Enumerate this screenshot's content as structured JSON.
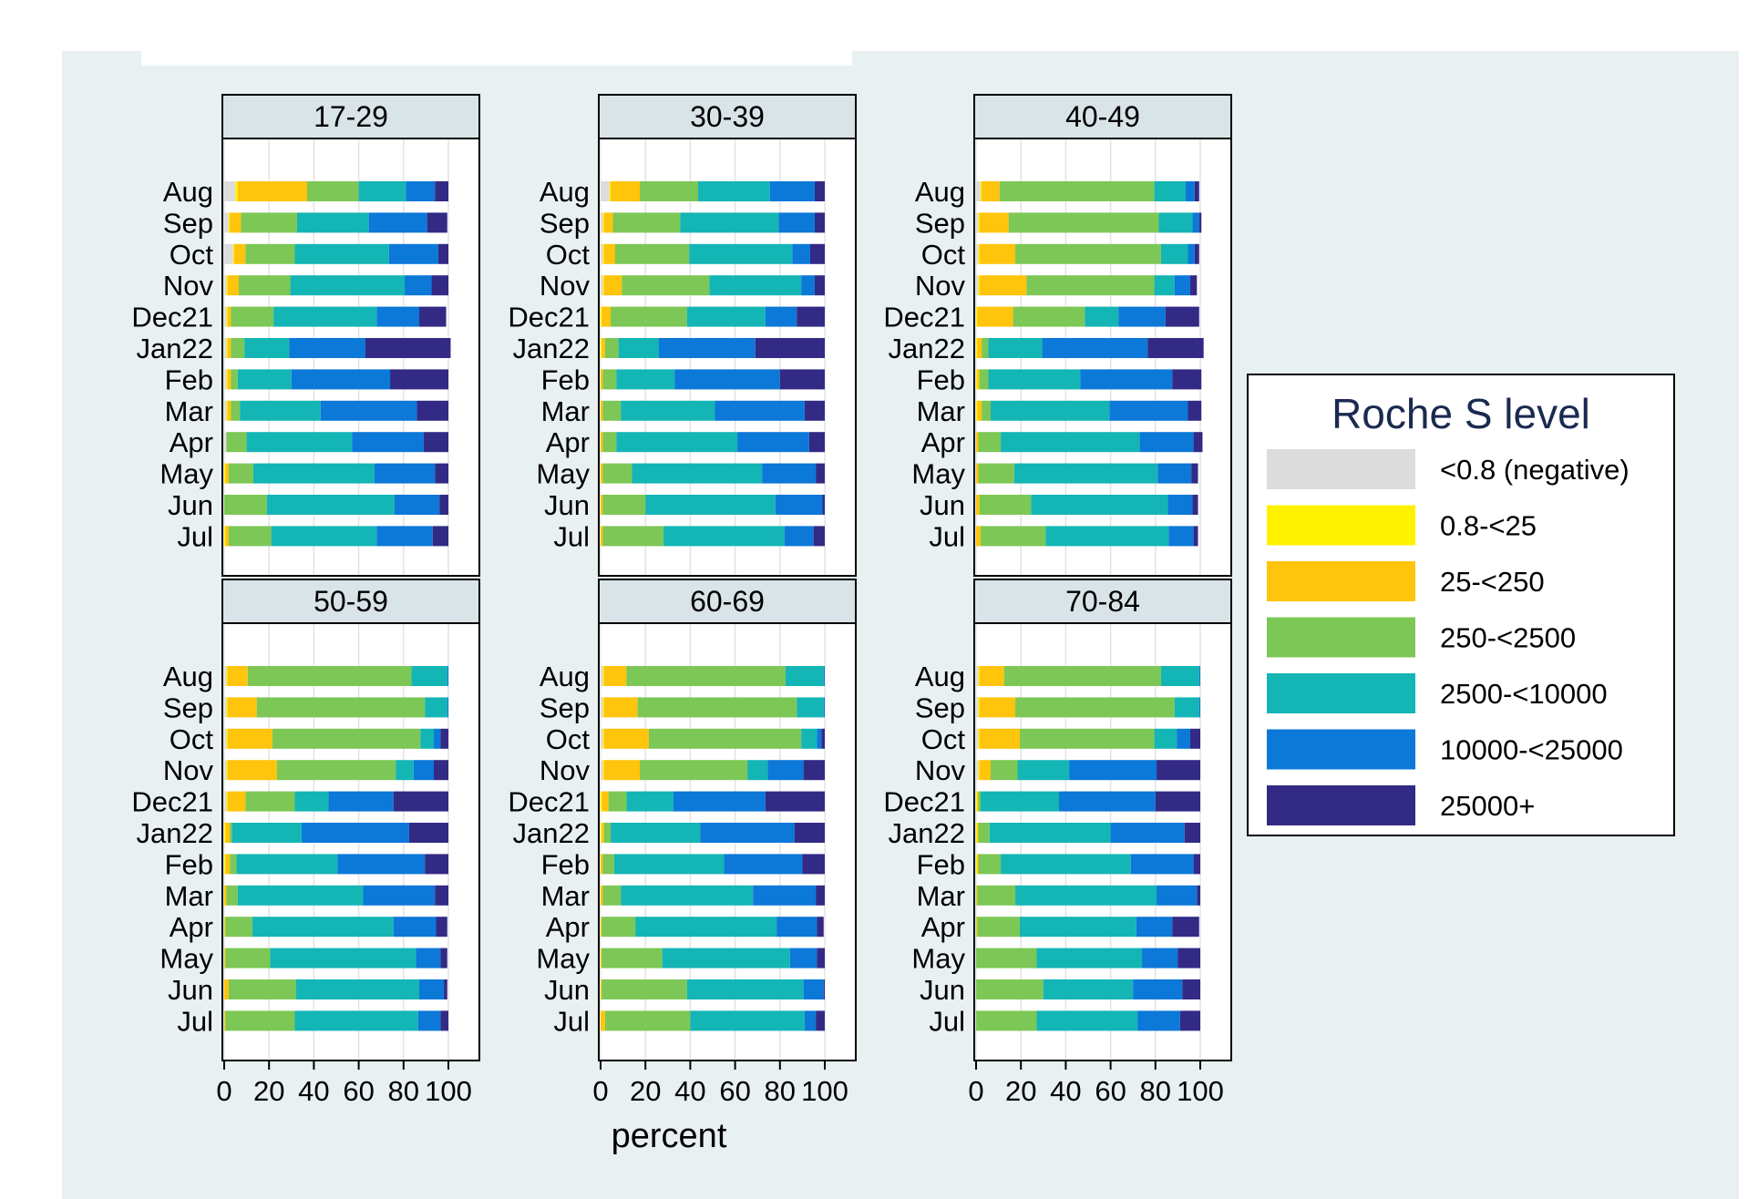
{
  "chart_data": {
    "type": "bar",
    "orientation": "horizontal",
    "stacked": true,
    "xlabel": "percent",
    "xlim": [
      0,
      100
    ],
    "xticks": [
      0,
      20,
      40,
      60,
      80,
      100
    ],
    "grid": true,
    "legend_position": "right",
    "categories": [
      "Aug",
      "Sep",
      "Oct",
      "Nov",
      "Dec21",
      "Jan22",
      "Feb",
      "Mar",
      "Apr",
      "May",
      "Jun",
      "Jul"
    ],
    "legend": {
      "title": "Roche S level",
      "items": [
        {
          "label": "<0.8 (negative)",
          "color": "#dcdcdc"
        },
        {
          "label": "0.8-<25",
          "color": "#fff200"
        },
        {
          "label": "25-<250",
          "color": "#ffc40c"
        },
        {
          "label": "250-<2500",
          "color": "#7dc756"
        },
        {
          "label": "2500-<10000",
          "color": "#14b5b5"
        },
        {
          "label": "10000-<25000",
          "color": "#0c78d8"
        },
        {
          "label": "25000+",
          "color": "#332a85"
        }
      ]
    },
    "panels": [
      {
        "title": "17-29",
        "series": [
          {
            "name": "<0.8 (negative)",
            "values": [
              5,
              2,
              4,
              1,
              1,
              1,
              1,
              1,
              1,
              0,
              0,
              0
            ]
          },
          {
            "name": "0.8-<25",
            "values": [
              1,
              0.5,
              0.5,
              0.5,
              0.5,
              0.5,
              0.5,
              0.5,
              0,
              0.5,
              0,
              0.5
            ]
          },
          {
            "name": "25-<250",
            "values": [
              31,
              5,
              5,
              5,
              1.5,
              1.5,
              1.5,
              1.5,
              0,
              1.5,
              0,
              1.5
            ]
          },
          {
            "name": "250-<2500",
            "values": [
              23,
              25,
              22,
              23,
              19,
              6,
              3,
              4,
              9,
              11,
              19,
              19
            ]
          },
          {
            "name": "2500-<10000",
            "values": [
              21,
              32,
              42,
              51,
              46,
              20,
              24,
              36,
              47,
              54,
              57,
              47
            ]
          },
          {
            "name": "10000-<25000",
            "values": [
              13,
              26,
              22,
              12,
              19,
              34,
              44,
              43,
              32,
              27,
              20,
              25
            ]
          },
          {
            "name": "25000+",
            "values": [
              6,
              9,
              4.5,
              7.5,
              12,
              38,
              26,
              14,
              11,
              6,
              4,
              7
            ]
          }
        ]
      },
      {
        "title": "30-39",
        "series": [
          {
            "name": "<0.8 (negative)",
            "values": [
              4,
              1,
              1,
              1,
              0,
              0,
              0,
              0,
              0,
              0,
              0,
              0
            ]
          },
          {
            "name": "0.8-<25",
            "values": [
              0.5,
              0.5,
              0.5,
              0.5,
              0.5,
              0.5,
              0,
              0,
              0,
              0,
              0,
              0
            ]
          },
          {
            "name": "25-<250",
            "values": [
              13,
              4,
              5,
              8,
              4,
              1.5,
              1,
              1,
              1,
              1,
              1,
              1
            ]
          },
          {
            "name": "250-<2500",
            "values": [
              26,
              30,
              33,
              39,
              34,
              6,
              6,
              8,
              6,
              13,
              19,
              27
            ]
          },
          {
            "name": "2500-<10000",
            "values": [
              32,
              44,
              46,
              41,
              35,
              18,
              26,
              42,
              54,
              58,
              58,
              54
            ]
          },
          {
            "name": "10000-<25000",
            "values": [
              20,
              16,
              8,
              6,
              14,
              43,
              47,
              40,
              32,
              24,
              21,
              13
            ]
          },
          {
            "name": "25000+",
            "values": [
              4.5,
              4.5,
              6.5,
              4.5,
              12.5,
              31,
              20,
              9,
              7,
              4,
              1,
              5
            ]
          }
        ]
      },
      {
        "title": "40-49",
        "series": [
          {
            "name": "<0.8 (negative)",
            "values": [
              2,
              1,
              1,
              1,
              0,
              0,
              0,
              0,
              0,
              0,
              0,
              0
            ]
          },
          {
            "name": "0.8-<25",
            "values": [
              0.5,
              0.5,
              0.5,
              0.5,
              0.5,
              0.5,
              0.5,
              0.5,
              0,
              0,
              0,
              0
            ]
          },
          {
            "name": "25-<250",
            "values": [
              8,
              13,
              16,
              21,
              16,
              2,
              1,
              2,
              1,
              1,
              1.5,
              2
            ]
          },
          {
            "name": "250-<2500",
            "values": [
              69,
              67,
              65,
              57,
              32,
              3,
              4,
              4,
              10,
              16,
              23,
              29
            ]
          },
          {
            "name": "2500-<10000",
            "values": [
              14,
              15,
              12,
              9,
              15,
              24,
              41,
              53,
              62,
              64,
              61,
              55
            ]
          },
          {
            "name": "10000-<25000",
            "values": [
              4,
              3,
              3,
              7,
              21,
              47,
              41,
              35,
              24,
              15,
              11,
              11
            ]
          },
          {
            "name": "25000+",
            "values": [
              2,
              1,
              2,
              3,
              15,
              25,
              13,
              6,
              4,
              3,
              2.5,
              2
            ]
          }
        ]
      },
      {
        "title": "50-59",
        "series": [
          {
            "name": "<0.8 (negative)",
            "values": [
              1,
              1,
              1,
              1,
              1,
              0,
              0,
              0,
              0,
              0,
              0,
              0
            ]
          },
          {
            "name": "0.8-<25",
            "values": [
              0.5,
              0.5,
              0.5,
              0.5,
              0.5,
              0.5,
              0.5,
              0,
              0,
              0,
              0,
              0
            ]
          },
          {
            "name": "25-<250",
            "values": [
              9,
              13,
              20,
              22,
              8,
              2,
              2,
              1,
              0.5,
              0.5,
              2,
              0.5
            ]
          },
          {
            "name": "250-<2500",
            "values": [
              73,
              75,
              66,
              53,
              22,
              1,
              3,
              5,
              12,
              20,
              30,
              31
            ]
          },
          {
            "name": "2500-<10000",
            "values": [
              16,
              10,
              6,
              8,
              15,
              31,
              45,
              56,
              63,
              65,
              55,
              55
            ]
          },
          {
            "name": "10000-<25000",
            "values": [
              0.5,
              0.5,
              3,
              9,
              29,
              48,
              39,
              32,
              19,
              11,
              11,
              10
            ]
          },
          {
            "name": "25000+",
            "values": [
              0,
              0,
              3.5,
              6.5,
              24.5,
              17.5,
              10.5,
              6,
              5,
              3,
              1.5,
              3.5
            ]
          }
        ]
      },
      {
        "title": "60-69",
        "series": [
          {
            "name": "<0.8 (negative)",
            "values": [
              1,
              1,
              1,
              1,
              0,
              0,
              0,
              0,
              0,
              0,
              0,
              0
            ]
          },
          {
            "name": "0.8-<25",
            "values": [
              0.5,
              0.5,
              0.5,
              0.5,
              0.5,
              0.5,
              0,
              0,
              0,
              0,
              0,
              0
            ]
          },
          {
            "name": "25-<250",
            "values": [
              10,
              15,
              20,
              16,
              3,
              1,
              1,
              1,
              0.5,
              0.5,
              0.5,
              2
            ]
          },
          {
            "name": "250-<2500",
            "values": [
              71,
              71,
              68,
              48,
              8,
              3,
              5,
              8,
              15,
              27,
              38,
              38
            ]
          },
          {
            "name": "2500-<10000",
            "values": [
              17,
              12,
              7,
              9,
              21,
              40,
              49,
              59,
              63,
              57,
              52,
              51
            ]
          },
          {
            "name": "10000-<25000",
            "values": [
              0.5,
              0.5,
              2,
              16,
              41,
              42,
              35,
              28,
              18,
              12,
              9,
              5
            ]
          },
          {
            "name": "25000+",
            "values": [
              0,
              0,
              1.5,
              9.5,
              26.5,
              13.5,
              10,
              4,
              3,
              3.5,
              0.5,
              4
            ]
          }
        ]
      },
      {
        "title": "70-84",
        "series": [
          {
            "name": "<0.8 (negative)",
            "values": [
              1,
              1,
              1,
              1,
              0,
              0,
              0,
              0,
              0,
              0,
              0,
              0
            ]
          },
          {
            "name": "0.8-<25",
            "values": [
              0.5,
              0.5,
              0.5,
              0.5,
              0.5,
              0.5,
              0.5,
              0,
              0,
              0,
              0,
              0
            ]
          },
          {
            "name": "25-<250",
            "values": [
              11,
              16,
              18,
              5,
              0.5,
              0.5,
              0.5,
              0.5,
              0.5,
              0,
              0,
              0
            ]
          },
          {
            "name": "250-<2500",
            "values": [
              70,
              71,
              60,
              12,
              1,
              5,
              10,
              17,
              19,
              27,
              30,
              27
            ]
          },
          {
            "name": "2500-<10000",
            "values": [
              17,
              11,
              10,
              23,
              35,
              54,
              58,
              63,
              52,
              47,
              40,
              45
            ]
          },
          {
            "name": "10000-<25000",
            "values": [
              0.5,
              0.5,
              6,
              39,
              43,
              33,
              28,
              18,
              16,
              16,
              22,
              19
            ]
          },
          {
            "name": "25000+",
            "values": [
              0,
              0,
              4.5,
              19.5,
              20,
              7,
              3,
              1.5,
              12,
              10,
              8,
              9
            ]
          }
        ]
      }
    ]
  }
}
